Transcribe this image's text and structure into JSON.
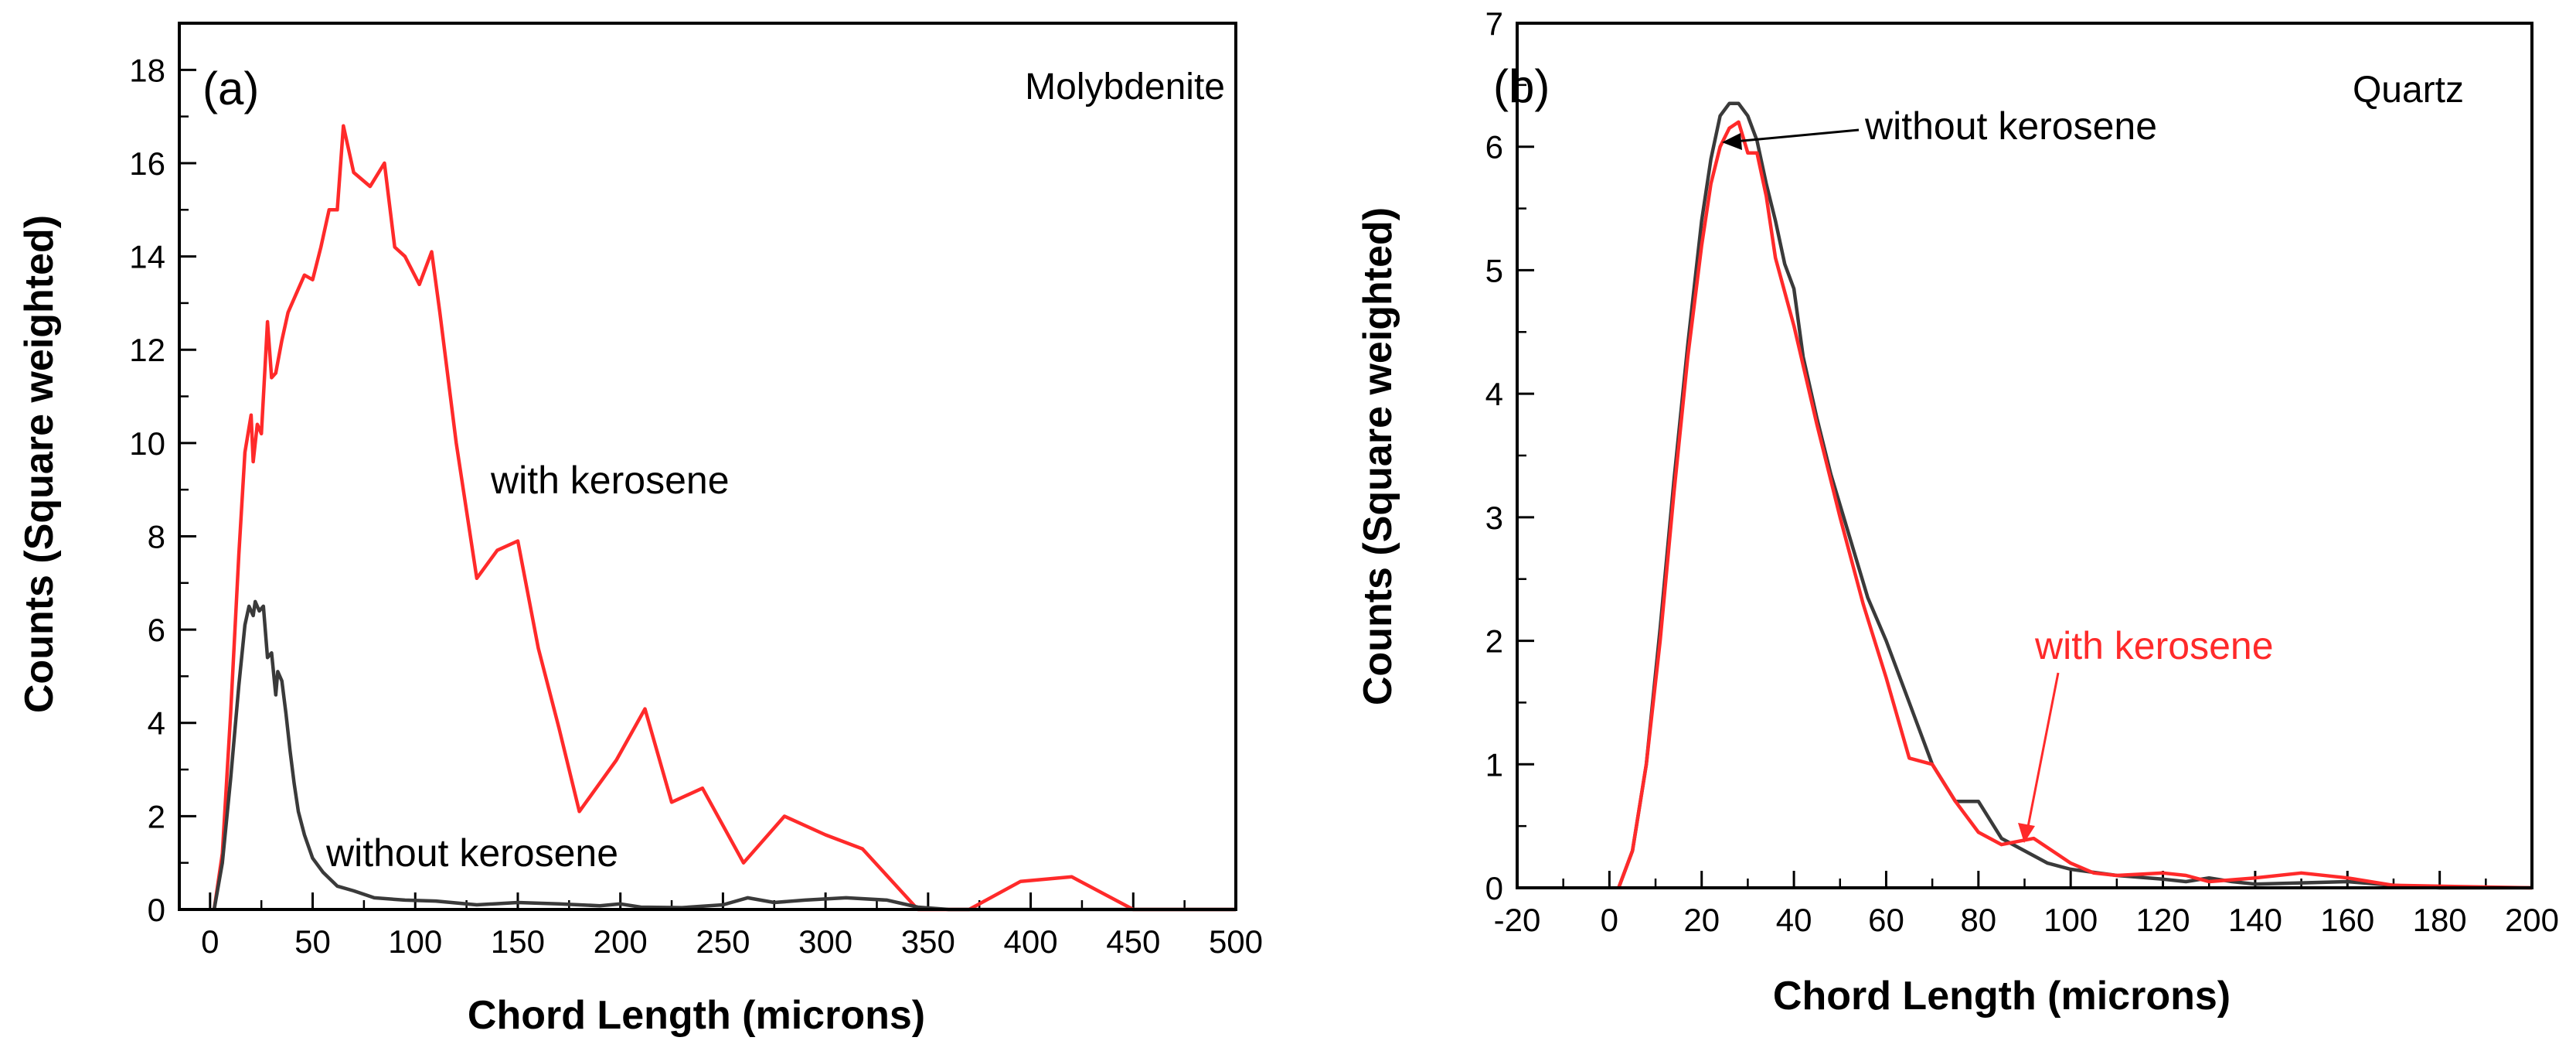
{
  "chart_data": [
    {
      "type": "line",
      "panel_label": "(a)",
      "material": "Molybdenite",
      "xlabel": "Chord Length (microns)",
      "ylabel": "Counts (Square weighted)",
      "xlim": [
        -15,
        500
      ],
      "ylim": [
        0,
        19
      ],
      "xticks": [
        0,
        50,
        100,
        150,
        200,
        250,
        300,
        350,
        400,
        450,
        500
      ],
      "yticks": [
        0,
        2,
        4,
        6,
        8,
        10,
        12,
        14,
        16,
        18
      ],
      "xtick_labels": [
        "0",
        "50",
        "100",
        "150",
        "200",
        "250",
        "300",
        "350",
        "400",
        "450",
        "500"
      ],
      "ytick_labels": [
        "0",
        "2",
        "4",
        "6",
        "8",
        "10",
        "12",
        "14",
        "16",
        "18"
      ],
      "series": [
        {
          "name": "with kerosene",
          "color": "#ff2a2a",
          "x": [
            2,
            6,
            10,
            14,
            17,
            20,
            21,
            23,
            25,
            27,
            28,
            30,
            32,
            35,
            38,
            42,
            46,
            50,
            54,
            58,
            62,
            65,
            70,
            78,
            85,
            90,
            95,
            102,
            108,
            112,
            120,
            130,
            140,
            150,
            160,
            170,
            180,
            198,
            212,
            225,
            240,
            260,
            280,
            300,
            318,
            345,
            370,
            395,
            420,
            450,
            500
          ],
          "y": [
            0,
            1.2,
            4.2,
            7.6,
            9.8,
            10.6,
            9.6,
            10.4,
            10.2,
            11.8,
            12.6,
            11.4,
            11.5,
            12.2,
            12.8,
            13.2,
            13.6,
            13.5,
            14.2,
            15.0,
            15.0,
            16.8,
            15.8,
            15.5,
            16.0,
            14.2,
            14.0,
            13.4,
            14.1,
            12.8,
            10.0,
            7.1,
            7.7,
            7.9,
            5.6,
            3.9,
            2.1,
            3.2,
            4.3,
            2.3,
            2.6,
            1.0,
            2.0,
            1.6,
            1.3,
            0,
            0,
            0.6,
            0.7,
            0,
            0
          ]
        },
        {
          "name": "without kerosene",
          "color": "#3a3a3a",
          "x": [
            2,
            6,
            10,
            14,
            17,
            19,
            21,
            22,
            24,
            26,
            28,
            30,
            32,
            33,
            35,
            37,
            39,
            41,
            43,
            46,
            50,
            55,
            62,
            70,
            80,
            95,
            110,
            130,
            150,
            170,
            190,
            200,
            210,
            230,
            250,
            262,
            275,
            290,
            310,
            330,
            345,
            360,
            400,
            450,
            500
          ],
          "y": [
            0,
            1.0,
            2.8,
            4.8,
            6.1,
            6.5,
            6.3,
            6.6,
            6.4,
            6.5,
            5.4,
            5.5,
            4.6,
            5.1,
            4.9,
            4.2,
            3.4,
            2.7,
            2.1,
            1.6,
            1.1,
            0.8,
            0.5,
            0.4,
            0.25,
            0.2,
            0.18,
            0.1,
            0.15,
            0.12,
            0.08,
            0.12,
            0.05,
            0.04,
            0.1,
            0.25,
            0.15,
            0.2,
            0.25,
            0.2,
            0.05,
            0,
            0,
            0,
            0
          ]
        }
      ],
      "annotations": [
        {
          "text": "with kerosene",
          "color": "#000000"
        },
        {
          "text": "without kerosene",
          "color": "#000000"
        }
      ]
    },
    {
      "type": "line",
      "panel_label": "(b)",
      "material": "Quartz",
      "xlabel": "Chord Length (microns)",
      "ylabel": "Counts (Square weighted)",
      "xlim": [
        -20,
        200
      ],
      "ylim": [
        0,
        7
      ],
      "xticks": [
        -20,
        0,
        20,
        40,
        60,
        80,
        100,
        120,
        140,
        160,
        180,
        200
      ],
      "yticks": [
        0,
        1,
        2,
        3,
        4,
        5,
        6,
        7
      ],
      "xtick_labels": [
        "-20",
        "0",
        "20",
        "40",
        "60",
        "80",
        "100",
        "120",
        "140",
        "160",
        "180",
        "200"
      ],
      "ytick_labels": [
        "0",
        "1",
        "2",
        "3",
        "4",
        "5",
        "6",
        "7"
      ],
      "series": [
        {
          "name": "without kerosene",
          "color": "#3a3a3a",
          "x": [
            2,
            5,
            8,
            11,
            14,
            17,
            20,
            22,
            24,
            26,
            28,
            30,
            32,
            34,
            36,
            38,
            40,
            42,
            45,
            48,
            52,
            56,
            60,
            65,
            70,
            75,
            80,
            85,
            90,
            95,
            100,
            110,
            120,
            125,
            130,
            135,
            140,
            150,
            160,
            170,
            180,
            200
          ],
          "y": [
            0,
            0.3,
            1.0,
            2.1,
            3.3,
            4.4,
            5.4,
            5.9,
            6.25,
            6.35,
            6.35,
            6.25,
            6.05,
            5.7,
            5.4,
            5.05,
            4.85,
            4.3,
            3.8,
            3.35,
            2.85,
            2.35,
            2.0,
            1.5,
            1.0,
            0.7,
            0.7,
            0.4,
            0.3,
            0.2,
            0.15,
            0.1,
            0.07,
            0.05,
            0.08,
            0.05,
            0.03,
            0.04,
            0.05,
            0.02,
            0,
            0
          ]
        },
        {
          "name": "with kerosene",
          "color": "#ff2a2a",
          "x": [
            2,
            5,
            8,
            11,
            14,
            17,
            20,
            22,
            24,
            26,
            28,
            30,
            32,
            34,
            36,
            40,
            45,
            50,
            55,
            60,
            65,
            70,
            75,
            80,
            85,
            92,
            100,
            105,
            110,
            120,
            125,
            130,
            140,
            150,
            160,
            170,
            200
          ],
          "y": [
            0,
            0.3,
            1.0,
            2.0,
            3.2,
            4.3,
            5.2,
            5.7,
            6.0,
            6.15,
            6.2,
            5.95,
            5.95,
            5.6,
            5.1,
            4.55,
            3.75,
            3.0,
            2.3,
            1.7,
            1.05,
            1.0,
            0.7,
            0.45,
            0.35,
            0.4,
            0.2,
            0.12,
            0.1,
            0.12,
            0.1,
            0.05,
            0.08,
            0.12,
            0.08,
            0.02,
            0
          ]
        }
      ],
      "annotations": [
        {
          "text": "without kerosene",
          "color": "#000000"
        },
        {
          "text": "with kerosene",
          "color": "#ff2a2a"
        }
      ]
    }
  ]
}
